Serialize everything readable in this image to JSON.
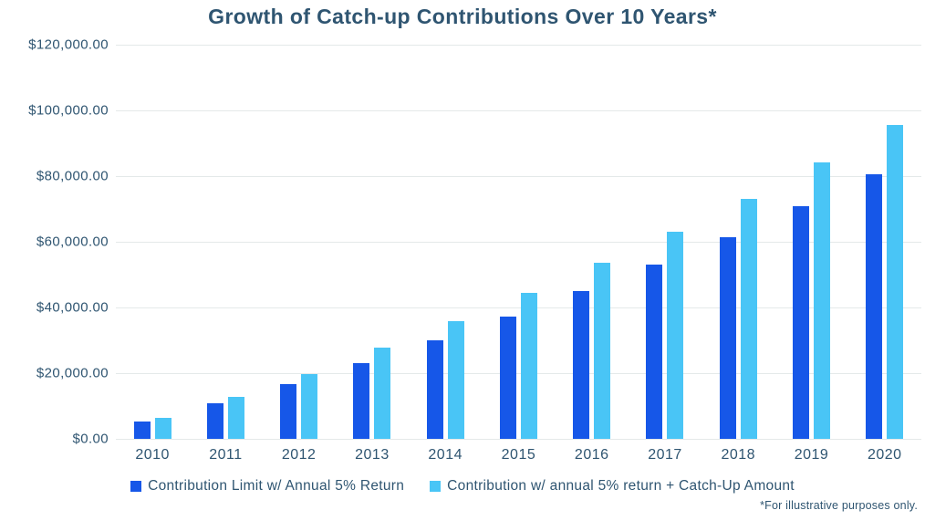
{
  "title": "Growth of Catch-up Contributions Over 10 Years*",
  "footnote": "*For illustrative purposes only.",
  "colors": {
    "series1": "#1657e8",
    "series2": "#49c5f6",
    "text": "#2f5571",
    "gridline": "#e4e9e9"
  },
  "chart_data": {
    "type": "bar",
    "title": "Growth of Catch-up Contributions Over 10 Years*",
    "categories": [
      "2010",
      "2011",
      "2012",
      "2013",
      "2014",
      "2015",
      "2016",
      "2017",
      "2018",
      "2019",
      "2020"
    ],
    "series": [
      {
        "name": "Contribution Limit w/ Annual 5% Return",
        "color": "#1657e8",
        "values": [
          5250,
          10763,
          16551,
          23153,
          30086,
          37365,
          45008,
          53034,
          61460,
          70833,
          80675
        ]
      },
      {
        "name": "Contribution w/ annual 5% return + Catch-Up Amount",
        "color": "#49c5f6",
        "values": [
          6300,
          12915,
          19861,
          27679,
          35888,
          44507,
          53557,
          63060,
          73038,
          84040,
          95592
        ]
      }
    ],
    "xlabel": "",
    "ylabel": "",
    "ylim": [
      0,
      120000
    ],
    "yticks": [
      "$120,000.00",
      "$100,000.00",
      "$80,000.00",
      "$60,000.00",
      "$40,000.00",
      "$20,000.00",
      "$0.00"
    ],
    "grid": true,
    "legend_position": "bottom",
    "footnote": "*For illustrative purposes only."
  }
}
